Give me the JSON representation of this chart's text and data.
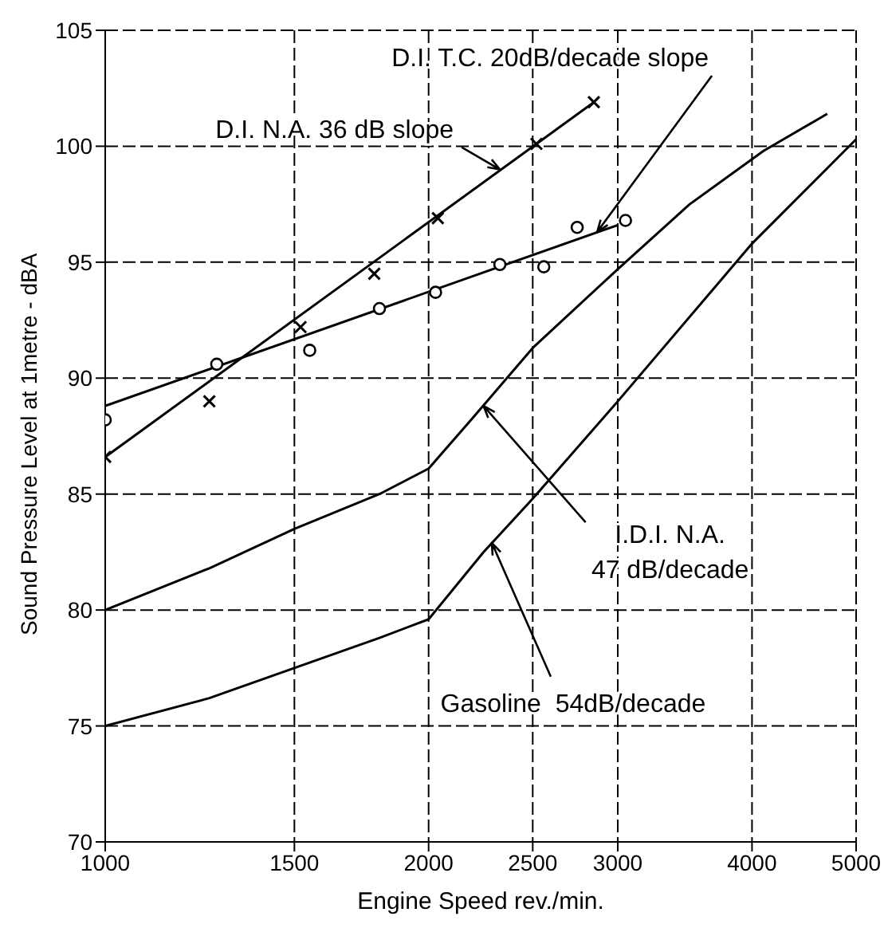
{
  "chart_data": {
    "type": "line",
    "xlabel": "Engine Speed rev./min.",
    "ylabel": "Sound Pressure Level at 1metre - dBA",
    "log": "x",
    "grid": true,
    "line_style": "solid",
    "xlim": [
      1000,
      5000
    ],
    "xticks": [
      1000,
      1500,
      2000,
      2500,
      3000,
      4000,
      5000
    ],
    "ylim": [
      70,
      105
    ],
    "yticks": [
      70,
      75,
      80,
      85,
      90,
      95,
      100,
      105
    ],
    "series": [
      {
        "type": "scatter",
        "marker": "circle",
        "color": "#000000",
        "x": [
          1000,
          1270,
          1550,
          1800,
          2030,
          2330,
          2560,
          2750,
          3050
        ],
        "values": [
          88.2,
          90.6,
          91.2,
          93,
          93.7,
          94.9,
          94.8,
          96.5,
          96.8
        ]
      },
      {
        "type": "line",
        "marker": "none",
        "color": "#000000",
        "x": [
          1000,
          3000
        ],
        "values": [
          88.8,
          96.6
        ]
      },
      {
        "type": "scatter",
        "marker": "cross",
        "color": "#000000",
        "x": [
          1000,
          1250,
          1520,
          1780,
          2040,
          2520,
          2850
        ],
        "values": [
          86.6,
          89,
          92.2,
          94.5,
          96.9,
          100.1,
          101.9
        ]
      },
      {
        "type": "line",
        "marker": "none",
        "color": "#000000",
        "x": [
          1000,
          2850
        ],
        "values": [
          86.6,
          101.9
        ]
      },
      {
        "type": "line",
        "marker": "none",
        "color": "#000000",
        "x": [
          1000,
          1250,
          1500,
          1800,
          2000,
          2200,
          2500,
          3000,
          3500,
          4100,
          4700
        ],
        "values": [
          80,
          81.8,
          83.5,
          85,
          86.1,
          88.3,
          91.3,
          94.7,
          97.5,
          99.8,
          101.4
        ]
      },
      {
        "type": "line",
        "marker": "none",
        "color": "#000000",
        "x": [
          1000,
          1250,
          1500,
          1800,
          2000,
          2250,
          2500,
          3000,
          4000,
          5000
        ],
        "values": [
          75,
          76.2,
          77.5,
          78.8,
          79.6,
          82.5,
          84.8,
          89,
          95.8,
          100.3
        ]
      }
    ],
    "annotations": [
      {
        "text": "D.I. T.C. 20dB/decade slope",
        "x": 2870,
        "y": 96.3
      },
      {
        "text": "D.I. N.A. 36 dB slope",
        "x": 2330,
        "y": 99.0
      },
      {
        "text": "I.D.I. N.A.\n47 dB/decade",
        "x": 2250,
        "y": 88.8
      },
      {
        "text": "Gasoline  54dB/decade",
        "x": 2290,
        "y": 82.9
      }
    ]
  }
}
